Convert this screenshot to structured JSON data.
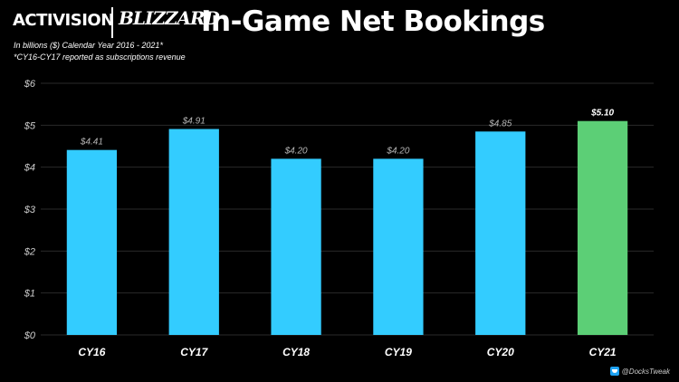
{
  "header": {
    "activision_logo": "ACTIVISION",
    "blizzard_logo": "BLIZZARD",
    "title": "In-Game Net Bookings",
    "subtitle_line1": "In billions ($) Calendar Year 2016 - 2021*",
    "subtitle_line2": "*CY16-CY17 reported as subscriptions revenue"
  },
  "footer": {
    "handle": "@DocksTweak",
    "icon": "twitter-icon"
  },
  "colors": {
    "bar_default": "#33ccff",
    "bar_highlight": "#5ccf76",
    "grid": "#2a2a2a",
    "axis_text": "#cfcfcf",
    "label_default": "#b5b5b5",
    "label_highlight": "#ffffff"
  },
  "chart_data": {
    "type": "bar",
    "categories": [
      "CY16",
      "CY17",
      "CY18",
      "CY19",
      "CY20",
      "CY21"
    ],
    "values": [
      4.41,
      4.91,
      4.2,
      4.2,
      4.85,
      5.1
    ],
    "data_labels": [
      "$4.41",
      "$4.91",
      "$4.20",
      "$4.20",
      "$4.85",
      "$5.10"
    ],
    "highlight_index": 5,
    "y_ticks": [
      0,
      1,
      2,
      3,
      4,
      5,
      6
    ],
    "y_tick_labels": [
      "$0",
      "$1",
      "$2",
      "$3",
      "$4",
      "$5",
      "$6"
    ],
    "ylim": [
      0,
      6
    ],
    "grid": true,
    "legend": "none"
  }
}
